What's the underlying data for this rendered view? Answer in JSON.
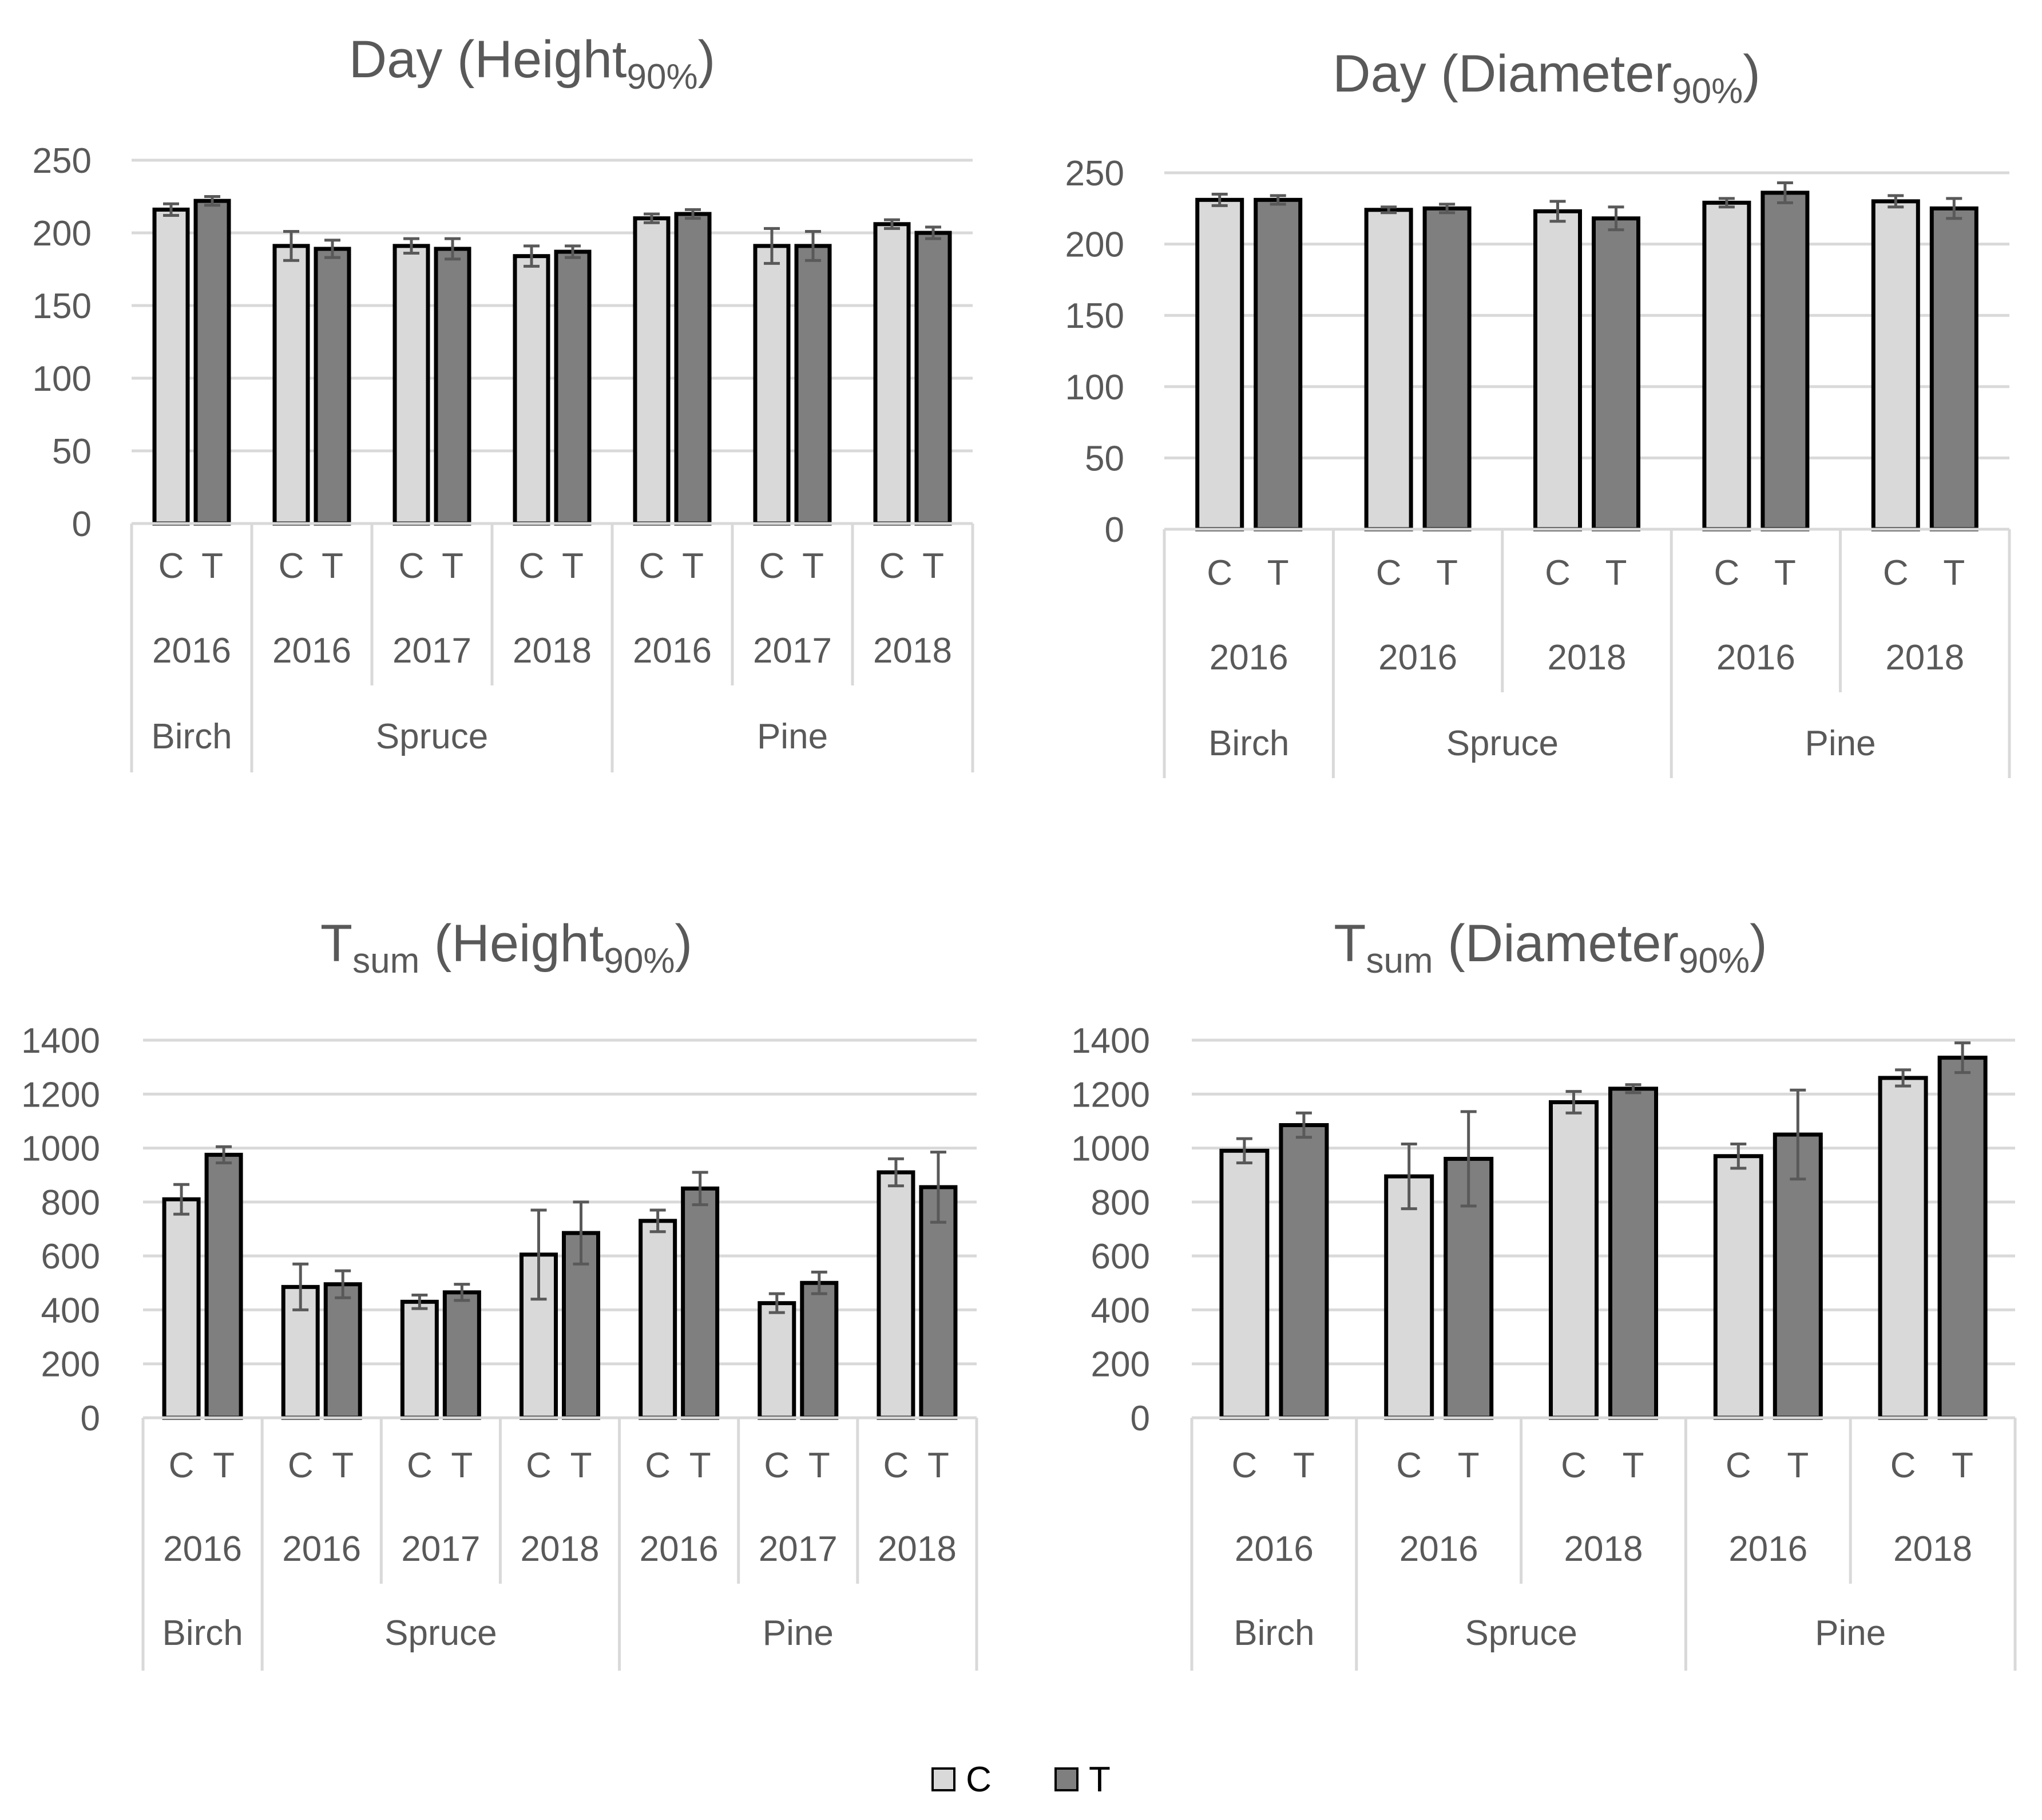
{
  "figure": {
    "legend": [
      {
        "label": "C",
        "color": "#d9d9d9"
      },
      {
        "label": "T",
        "color": "#7f7f7f"
      }
    ],
    "colors": {
      "C": "#d9d9d9",
      "T": "#7f7f7f",
      "edge": "#000000",
      "grid": "#d9d9d9",
      "error": "#595959",
      "text": "#595959"
    }
  },
  "chart_data": [
    {
      "id": "day-height",
      "type": "bar",
      "title_main": "Day (Height",
      "title_sub": "90%",
      "title_prefix_sub": "",
      "title_end": ")",
      "ylim": [
        0,
        250
      ],
      "yticks": [
        0,
        50,
        100,
        150,
        200,
        250
      ],
      "categories": [
        {
          "species": "Birch",
          "year": "2016",
          "C": 216,
          "C_err": 4,
          "T": 222,
          "T_err": 3
        },
        {
          "species": "Spruce",
          "year": "2016",
          "C": 191,
          "C_err": 10,
          "T": 189,
          "T_err": 6
        },
        {
          "species": "Spruce",
          "year": "2017",
          "C": 191,
          "C_err": 5,
          "T": 189,
          "T_err": 7
        },
        {
          "species": "Spruce",
          "year": "2018",
          "C": 184,
          "C_err": 7,
          "T": 187,
          "T_err": 4
        },
        {
          "species": "Pine",
          "year": "2016",
          "C": 210,
          "C_err": 3,
          "T": 213,
          "T_err": 3
        },
        {
          "species": "Pine",
          "year": "2017",
          "C": 191,
          "C_err": 12,
          "T": 191,
          "T_err": 10
        },
        {
          "species": "Pine",
          "year": "2018",
          "C": 206,
          "C_err": 3,
          "T": 200,
          "T_err": 4
        }
      ],
      "species_groups": [
        {
          "name": "Birch",
          "count": 1
        },
        {
          "name": "Spruce",
          "count": 3
        },
        {
          "name": "Pine",
          "count": 3
        }
      ]
    },
    {
      "id": "day-diameter",
      "type": "bar",
      "title_main": "Day (Diameter",
      "title_sub": "90%",
      "title_prefix_sub": "",
      "title_end": ")",
      "ylim": [
        0,
        250
      ],
      "yticks": [
        0,
        50,
        100,
        150,
        200,
        250
      ],
      "categories": [
        {
          "species": "Birch",
          "year": "2016",
          "C": 231,
          "C_err": 4,
          "T": 231,
          "T_err": 3
        },
        {
          "species": "Spruce",
          "year": "2016",
          "C": 224,
          "C_err": 2,
          "T": 225,
          "T_err": 3
        },
        {
          "species": "Spruce",
          "year": "2018",
          "C": 223,
          "C_err": 7,
          "T": 218,
          "T_err": 8
        },
        {
          "species": "Pine",
          "year": "2016",
          "C": 229,
          "C_err": 3,
          "T": 236,
          "T_err": 7
        },
        {
          "species": "Pine",
          "year": "2018",
          "C": 230,
          "C_err": 4,
          "T": 225,
          "T_err": 7
        }
      ],
      "species_groups": [
        {
          "name": "Birch",
          "count": 1
        },
        {
          "name": "Spruce",
          "count": 2
        },
        {
          "name": "Pine",
          "count": 2
        }
      ]
    },
    {
      "id": "tsum-height",
      "type": "bar",
      "title_main": " (Height",
      "title_sub": "90%",
      "title_prefix": "T",
      "title_prefix_sub": "sum",
      "title_end": ")",
      "ylim": [
        0,
        1400
      ],
      "yticks": [
        0,
        200,
        400,
        600,
        800,
        1000,
        1200,
        1400
      ],
      "categories": [
        {
          "species": "Birch",
          "year": "2016",
          "C": 810,
          "C_err": 55,
          "T": 975,
          "T_err": 30
        },
        {
          "species": "Spruce",
          "year": "2016",
          "C": 485,
          "C_err": 85,
          "T": 495,
          "T_err": 50
        },
        {
          "species": "Spruce",
          "year": "2017",
          "C": 430,
          "C_err": 25,
          "T": 465,
          "T_err": 30
        },
        {
          "species": "Spruce",
          "year": "2018",
          "C": 605,
          "C_err": 165,
          "T": 685,
          "T_err": 115
        },
        {
          "species": "Pine",
          "year": "2016",
          "C": 730,
          "C_err": 40,
          "T": 850,
          "T_err": 60
        },
        {
          "species": "Pine",
          "year": "2017",
          "C": 425,
          "C_err": 35,
          "T": 500,
          "T_err": 40
        },
        {
          "species": "Pine",
          "year": "2018",
          "C": 910,
          "C_err": 50,
          "T": 855,
          "T_err": 130
        }
      ],
      "species_groups": [
        {
          "name": "Birch",
          "count": 1
        },
        {
          "name": "Spruce",
          "count": 3
        },
        {
          "name": "Pine",
          "count": 3
        }
      ]
    },
    {
      "id": "tsum-diameter",
      "type": "bar",
      "title_main": " (Diameter",
      "title_sub": "90%",
      "title_prefix": "T",
      "title_prefix_sub": "sum",
      "title_end": ")",
      "ylim": [
        0,
        1400
      ],
      "yticks": [
        0,
        200,
        400,
        600,
        800,
        1000,
        1200,
        1400
      ],
      "categories": [
        {
          "species": "Birch",
          "year": "2016",
          "C": 990,
          "C_err": 45,
          "T": 1085,
          "T_err": 45
        },
        {
          "species": "Spruce",
          "year": "2016",
          "C": 895,
          "C_err": 120,
          "T": 960,
          "T_err": 175
        },
        {
          "species": "Spruce",
          "year": "2018",
          "C": 1170,
          "C_err": 40,
          "T": 1220,
          "T_err": 15
        },
        {
          "species": "Pine",
          "year": "2016",
          "C": 970,
          "C_err": 45,
          "T": 1050,
          "T_err": 165
        },
        {
          "species": "Pine",
          "year": "2018",
          "C": 1260,
          "C_err": 30,
          "T": 1335,
          "T_err": 55
        }
      ],
      "species_groups": [
        {
          "name": "Birch",
          "count": 1
        },
        {
          "name": "Spruce",
          "count": 2
        },
        {
          "name": "Pine",
          "count": 2
        }
      ]
    }
  ]
}
